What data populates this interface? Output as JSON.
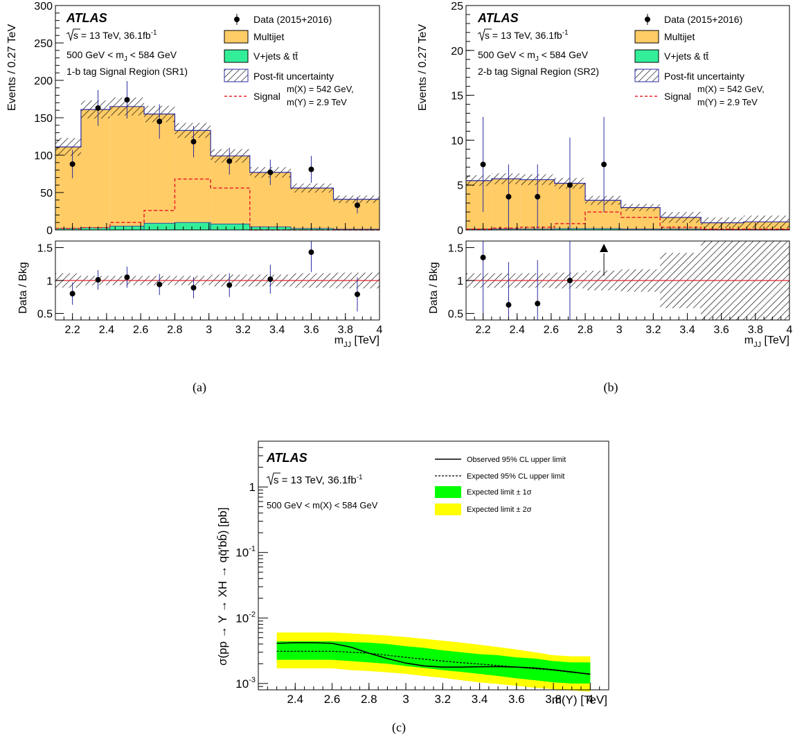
{
  "chart_data": [
    {
      "id": "a",
      "type": "bar",
      "caption": "(a)",
      "xlabel": "m",
      "xlabel_sub": "JJ",
      "xunit": " [TeV]",
      "ylabel": "Events / 0.27 TeV",
      "ratio_ylabel": "Data / Bkg",
      "xlim": [
        2.1,
        4.0
      ],
      "ylim": [
        0,
        300
      ],
      "ratio_ylim": [
        0.4,
        1.6
      ],
      "xticks": [
        "2.2",
        "2.4",
        "2.6",
        "2.8",
        "3",
        "3.2",
        "3.4",
        "3.6",
        "3.8",
        "4"
      ],
      "yticks": [
        "0",
        "50",
        "100",
        "150",
        "200",
        "250",
        "300"
      ],
      "ratio_yticks": [
        "0.5",
        "1",
        "1.5"
      ],
      "atlas": "ATLAS",
      "energy_line": {
        "sqrt": "s",
        "rest": " = 13 TeV, 36.1fb",
        "sup": "-1"
      },
      "mass_window": {
        "pre": "500 GeV < m",
        "sub": "J",
        "post": " < 584 GeV"
      },
      "region": "1-b tag Signal Region (SR1)",
      "legend": {
        "data": "Data (2015+2016)",
        "multijet": "Multijet",
        "vjets": "V+jets & tt̄",
        "uncertainty": "Post-fit uncertainty",
        "signal": "Signal",
        "signal_l1": "m(X) = 542 GeV,",
        "signal_l2": "m(Y) = 2.9 TeV"
      },
      "bin_edges": [
        2.1,
        2.25,
        2.42,
        2.62,
        2.8,
        3.01,
        3.24,
        3.48,
        3.73,
        4.0
      ],
      "multijet_total": [
        111,
        161,
        165,
        155,
        133,
        99,
        77,
        56,
        41
      ],
      "vjets_ttbar": [
        2,
        3,
        5,
        9,
        10,
        8,
        4,
        2,
        1
      ],
      "uncertainty": [
        12,
        12,
        12,
        11,
        10,
        9,
        7,
        6,
        5
      ],
      "signal": [
        2,
        3,
        10,
        26,
        68,
        56,
        0,
        0,
        0
      ],
      "data_x": [
        2.2,
        2.35,
        2.52,
        2.71,
        2.91,
        3.12,
        3.36,
        3.6,
        3.87
      ],
      "data_y": [
        88,
        163,
        174,
        145,
        118,
        92,
        77,
        81,
        33
      ],
      "data_err": [
        19,
        24,
        25,
        23,
        21,
        18,
        17,
        18,
        11
      ],
      "ratio_y": [
        0.8,
        1.01,
        1.05,
        0.94,
        0.89,
        0.93,
        1.02,
        1.43,
        0.79
      ],
      "ratio_err": [
        0.17,
        0.15,
        0.16,
        0.16,
        0.16,
        0.18,
        0.22,
        0.3,
        0.26
      ],
      "ratio_band": [
        0.11,
        0.07,
        0.07,
        0.07,
        0.07,
        0.09,
        0.09,
        0.11,
        0.12
      ],
      "ratio_arrows": []
    },
    {
      "id": "b",
      "type": "bar",
      "caption": "(b)",
      "xlabel": "m",
      "xlabel_sub": "JJ",
      "xunit": " [TeV]",
      "ylabel": "Events / 0.27 TeV",
      "ratio_ylabel": "Data / Bkg",
      "xlim": [
        2.1,
        4.0
      ],
      "ylim": [
        0,
        25
      ],
      "ratio_ylim": [
        0.4,
        1.6
      ],
      "xticks": [
        "2.2",
        "2.4",
        "2.6",
        "2.8",
        "3",
        "3.2",
        "3.4",
        "3.6",
        "3.8",
        "4"
      ],
      "yticks": [
        "0",
        "5",
        "10",
        "15",
        "20",
        "25"
      ],
      "ratio_yticks": [
        "0.5",
        "1",
        "1.5"
      ],
      "atlas": "ATLAS",
      "energy_line": {
        "sqrt": "s",
        "rest": " = 13 TeV, 36.1fb",
        "sup": "-1"
      },
      "mass_window": {
        "pre": "500 GeV < m",
        "sub": "J",
        "post": " < 584 GeV"
      },
      "region": "2-b tag Signal Region (SR2)",
      "legend": {
        "data": "Data (2015+2016)",
        "multijet": "Multijet",
        "vjets": "V+jets & tt̄",
        "uncertainty": "Post-fit uncertainty",
        "signal": "Signal",
        "signal_l1": "m(X) = 542 GeV,",
        "signal_l2": "m(Y) = 2.9 TeV"
      },
      "bin_edges": [
        2.1,
        2.25,
        2.42,
        2.62,
        2.8,
        3.01,
        3.24,
        3.48,
        3.73,
        4.0
      ],
      "multijet_total": [
        5.5,
        5.7,
        5.6,
        5.2,
        3.3,
        2.5,
        1.4,
        0.8,
        0.9
      ],
      "vjets_ttbar": [
        0.1,
        0.1,
        0.1,
        0.15,
        0.15,
        0.1,
        0.1,
        0.05,
        0.05
      ],
      "uncertainty": [
        0.6,
        0.6,
        0.6,
        0.6,
        0.5,
        0.4,
        0.6,
        0.6,
        0.7
      ],
      "signal": [
        0.1,
        0.2,
        0.3,
        0.7,
        2.0,
        1.4,
        0.3,
        0.1,
        0.1
      ],
      "data_x": [
        2.2,
        2.35,
        2.52,
        2.71,
        2.91
      ],
      "data_y": [
        7.3,
        3.7,
        3.7,
        5.0,
        7.3
      ],
      "data_err": [
        5.3,
        3.6,
        3.6,
        5.3,
        5.3
      ],
      "ratio_y": [
        1.35,
        0.63,
        0.65,
        1.0
      ],
      "ratio_x": [
        2.2,
        2.35,
        2.52,
        2.71
      ],
      "ratio_err": [
        1.0,
        0.65,
        0.66,
        1.0
      ],
      "ratio_band": [
        0.11,
        0.11,
        0.11,
        0.12,
        0.15,
        0.17,
        0.42,
        1.0,
        1.0
      ],
      "ratio_arrows": [
        2.91
      ]
    },
    {
      "id": "c",
      "type": "line",
      "caption": "(c)",
      "xlabel": "m(Y) [TeV]",
      "ylabel": "σ(pp → Y → XH → qq̄′bb̄) [pb]",
      "xlim": [
        2.2,
        4.1
      ],
      "ylim": [
        0.0008,
        5
      ],
      "log_y": true,
      "xticks": [
        "2.4",
        "2.6",
        "2.8",
        "3",
        "3.2",
        "3.4",
        "3.6",
        "3.8",
        "4"
      ],
      "yticks": [
        {
          "base": "10",
          "exp": "-3"
        },
        {
          "base": "10",
          "exp": "-2"
        },
        {
          "base": "10",
          "exp": "-1"
        },
        {
          "base": "1",
          "exp": ""
        }
      ],
      "atlas": "ATLAS",
      "energy_line": {
        "sqrt": "s",
        "rest": " = 13 TeV, 36.1fb",
        "sup": "-1"
      },
      "mass_window": "500 GeV < m(X) < 584 GeV",
      "legend": {
        "observed": "Observed 95% CL upper limit",
        "expected": "Expected 95% CL upper limit",
        "band1": "Expected limit ± 1σ",
        "band2": "Expected limit ± 2σ"
      },
      "colors": {
        "band1": "#00ff00",
        "band2": "#ffff00"
      },
      "x": [
        2.3,
        2.4,
        2.5,
        2.6,
        2.7,
        2.8,
        2.9,
        3.0,
        3.1,
        3.2,
        3.3,
        3.4,
        3.5,
        3.6,
        3.7,
        3.8,
        3.9,
        4.0
      ],
      "observed": [
        0.0041,
        0.0042,
        0.0042,
        0.0041,
        0.0036,
        0.0029,
        0.0024,
        0.00205,
        0.00185,
        0.00178,
        0.00178,
        0.0018,
        0.00181,
        0.00178,
        0.00172,
        0.00162,
        0.0015,
        0.00138
      ],
      "expected": [
        0.0031,
        0.0031,
        0.0031,
        0.0031,
        0.003,
        0.0029,
        0.0027,
        0.0025,
        0.00235,
        0.0022,
        0.00208,
        0.00198,
        0.00188,
        0.00178,
        0.00168,
        0.0016,
        0.00148,
        0.0014
      ],
      "band1_low": [
        0.0023,
        0.0023,
        0.0023,
        0.0023,
        0.0022,
        0.0021,
        0.002,
        0.00185,
        0.00172,
        0.0016,
        0.0015,
        0.0014,
        0.0013,
        0.0012,
        0.00112,
        0.00104,
        0.001,
        0.001
      ],
      "band1_high": [
        0.0044,
        0.0044,
        0.0044,
        0.0044,
        0.0043,
        0.0042,
        0.004,
        0.0037,
        0.0035,
        0.0032,
        0.003,
        0.0028,
        0.0027,
        0.0025,
        0.0024,
        0.0022,
        0.0021,
        0.0021
      ],
      "band2_low": [
        0.0017,
        0.0017,
        0.0017,
        0.0017,
        0.0016,
        0.00155,
        0.00148,
        0.0014,
        0.0013,
        0.00122,
        0.00112,
        0.00104,
        0.00098,
        0.00092,
        0.00086,
        0.00082,
        0.00078,
        0.00075
      ],
      "band2_high": [
        0.006,
        0.006,
        0.006,
        0.006,
        0.0058,
        0.0056,
        0.0054,
        0.0051,
        0.0048,
        0.0045,
        0.0042,
        0.0039,
        0.0036,
        0.0033,
        0.003,
        0.0027,
        0.0026,
        0.0026
      ]
    }
  ]
}
